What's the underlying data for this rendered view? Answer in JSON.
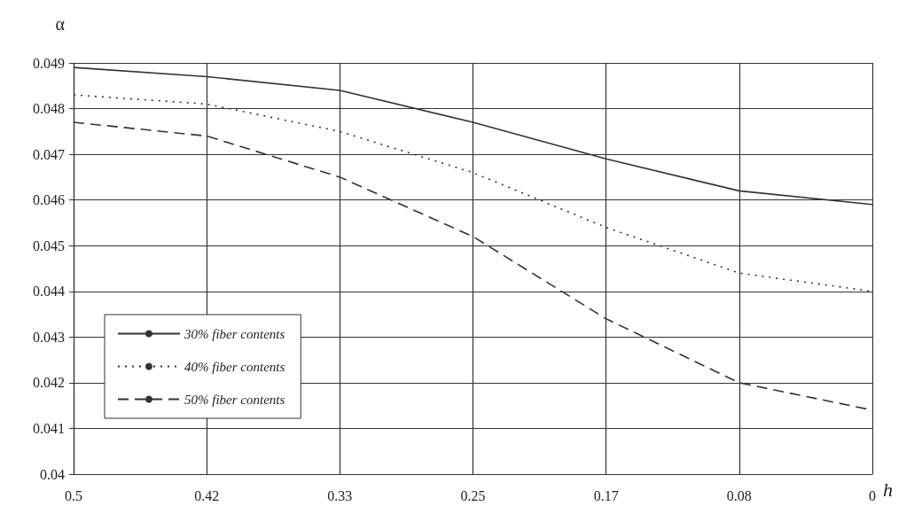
{
  "chart_data": {
    "type": "line",
    "xlabel": "h",
    "ylabel": "α",
    "categories": [
      "0.5",
      "0.42",
      "0.33",
      "0.25",
      "0.17",
      "0.08",
      "0"
    ],
    "series": [
      {
        "name": "30% fiber contents",
        "color": "#333333",
        "line_style": "solid",
        "values": [
          0.0489,
          0.0487,
          0.0484,
          0.0477,
          0.0469,
          0.0462,
          0.0459
        ]
      },
      {
        "name": "40% fiber contents",
        "color": "#333333",
        "line_style": "dotted",
        "values": [
          0.0483,
          0.0481,
          0.0475,
          0.0466,
          0.0454,
          0.0444,
          0.044
        ]
      },
      {
        "name": "50% fiber contents",
        "color": "#333333",
        "line_style": "dashed",
        "values": [
          0.0477,
          0.0474,
          0.0465,
          0.0452,
          0.0434,
          0.042,
          0.0414
        ]
      }
    ],
    "ylim": [
      0.04,
      0.049
    ],
    "yticks": [
      0.04,
      0.041,
      0.042,
      0.043,
      0.044,
      0.045,
      0.046,
      0.047,
      0.048,
      0.049
    ],
    "grid": true,
    "legend": "bottom left"
  }
}
